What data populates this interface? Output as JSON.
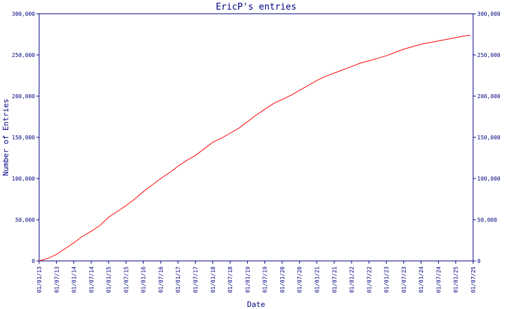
{
  "chart_data": {
    "type": "line",
    "title": "EricP's entries",
    "xlabel": "Date",
    "ylabel": "Number of Entries",
    "ylim": [
      0,
      300000
    ],
    "yticks": [
      0,
      50000,
      100000,
      150000,
      200000,
      250000,
      300000
    ],
    "ytick_labels": [
      "0",
      "50,000",
      "100,000",
      "150,000",
      "200,000",
      "250,000",
      "300,000"
    ],
    "xticks": [
      "01/01/13",
      "01/07/13",
      "01/01/14",
      "01/07/14",
      "01/01/15",
      "01/07/15",
      "01/01/16",
      "01/07/16",
      "01/01/17",
      "01/07/17",
      "01/01/18",
      "01/07/18",
      "01/01/19",
      "01/07/19",
      "01/01/20",
      "01/07/20",
      "01/01/21",
      "01/07/21",
      "01/01/22",
      "01/07/22",
      "01/01/23",
      "01/07/23",
      "01/01/24",
      "01/07/24",
      "01/01/25",
      "01/07/25"
    ],
    "grid": false,
    "legend": "none",
    "series": [
      {
        "color": "#ff0000",
        "x": [
          "01/01/13",
          "01/04/13",
          "01/07/13",
          "01/10/13",
          "01/01/14",
          "01/04/14",
          "01/07/14",
          "01/10/14",
          "01/01/15",
          "01/04/15",
          "01/07/15",
          "01/10/15",
          "01/01/16",
          "01/04/16",
          "01/07/16",
          "01/10/16",
          "01/01/17",
          "01/04/17",
          "01/07/17",
          "01/10/17",
          "01/01/18",
          "01/04/18",
          "01/07/18",
          "01/10/18",
          "01/01/19",
          "01/04/19",
          "01/07/19",
          "01/10/19",
          "01/01/20",
          "01/04/20",
          "01/07/20",
          "01/10/20",
          "01/01/21",
          "01/04/21",
          "01/07/21",
          "01/10/21",
          "01/01/22",
          "01/04/22",
          "01/07/22",
          "01/10/22",
          "01/01/23",
          "01/04/23",
          "01/07/23",
          "01/10/23",
          "01/01/24",
          "01/04/24",
          "01/07/24",
          "01/10/24",
          "01/01/25",
          "01/04/25",
          "01/06/25"
        ],
        "y": [
          0,
          3000,
          8000,
          15000,
          22000,
          30000,
          36000,
          43000,
          53000,
          60000,
          67000,
          75000,
          84000,
          92000,
          100000,
          107000,
          115000,
          122000,
          128000,
          136000,
          144000,
          149000,
          155000,
          161000,
          169000,
          177000,
          184000,
          191000,
          196000,
          201000,
          207000,
          213000,
          219000,
          224000,
          228000,
          232000,
          236000,
          240000,
          243000,
          246000,
          249000,
          253000,
          257000,
          260000,
          263000,
          265000,
          267000,
          269000,
          271000,
          273000,
          274000
        ]
      }
    ]
  }
}
